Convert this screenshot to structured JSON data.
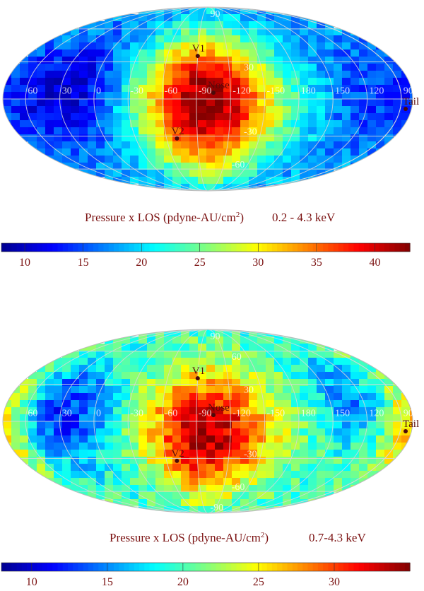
{
  "chart_data": [
    {
      "type": "heatmap",
      "projection": "Mollweide all-sky map",
      "title_main": "Pressure x LOS (pdyne-AU/cm",
      "title_sup": "2",
      "title_end": ")",
      "energy_band": "0.2 - 4.3 keV",
      "colorbar": {
        "min": 8,
        "max": 43,
        "ticks": [
          10,
          15,
          20,
          25,
          30,
          35,
          40
        ]
      },
      "lon_grid_labels": [
        "60",
        "30",
        "0",
        "-30",
        "-60",
        "-90",
        "-120",
        "-150",
        "180",
        "150",
        "120",
        "90"
      ],
      "lat_grid_labels": [
        "90",
        "30",
        "-30",
        "-60"
      ],
      "markers": [
        {
          "name": "V1",
          "lon": -90,
          "lat": 35
        },
        {
          "name": "Nose",
          "lon": -105,
          "lat": 5
        },
        {
          "name": "V2",
          "lon": -70,
          "lat": -32
        },
        {
          "name": "Tail",
          "lon": 75,
          "lat": -5
        }
      ],
      "field": {
        "base": 19,
        "blobs": [
          {
            "lon": -100,
            "lat": -15,
            "amp": 21,
            "sig_lon": 45,
            "sig_lat": 35
          },
          {
            "lon": -95,
            "lat": 25,
            "amp": 8,
            "sig_lon": 40,
            "sig_lat": 25
          },
          {
            "lon": 25,
            "lat": 5,
            "amp": -9,
            "sig_lon": 40,
            "sig_lat": 35
          },
          {
            "lon": 120,
            "lat": 0,
            "amp": -4,
            "sig_lon": 30,
            "sig_lat": 40
          }
        ]
      }
    },
    {
      "type": "heatmap",
      "projection": "Mollweide all-sky map",
      "title_main": "Pressure x LOS (pdyne-AU/cm",
      "title_sup": "2",
      "title_end": ")",
      "energy_band": "0.7-4.3 keV",
      "colorbar": {
        "min": 8,
        "max": 35,
        "ticks": [
          10,
          15,
          20,
          25,
          30
        ]
      },
      "lon_grid_labels": [
        "60",
        "30",
        "0",
        "-30",
        "-60",
        "-90",
        "-120",
        "-150",
        "180",
        "150",
        "120",
        "90"
      ],
      "lat_grid_labels": [
        "90",
        "60",
        "30",
        "-30",
        "-60",
        "-90"
      ],
      "markers": [
        {
          "name": "V1",
          "lon": -90,
          "lat": 35
        },
        {
          "name": "Nose",
          "lon": -105,
          "lat": 5
        },
        {
          "name": "V2",
          "lon": -70,
          "lat": -32
        },
        {
          "name": "Tail",
          "lon": 75,
          "lat": -5
        }
      ],
      "field": {
        "base": 20,
        "blobs": [
          {
            "lon": -100,
            "lat": -10,
            "amp": 14,
            "sig_lon": 40,
            "sig_lat": 35
          },
          {
            "lon": 30,
            "lat": 5,
            "amp": -8,
            "sig_lon": 35,
            "sig_lat": 30
          },
          {
            "lon": 130,
            "lat": 20,
            "amp": -5,
            "sig_lon": 25,
            "sig_lat": 25
          },
          {
            "lon": 80,
            "lat": 0,
            "amp": 9,
            "sig_lon": 18,
            "sig_lat": 30
          }
        ]
      }
    }
  ],
  "colormap": [
    "#00008f",
    "#0000ff",
    "#0080ff",
    "#00ffff",
    "#80ff80",
    "#ffff00",
    "#ff8000",
    "#ff0000",
    "#800000"
  ]
}
